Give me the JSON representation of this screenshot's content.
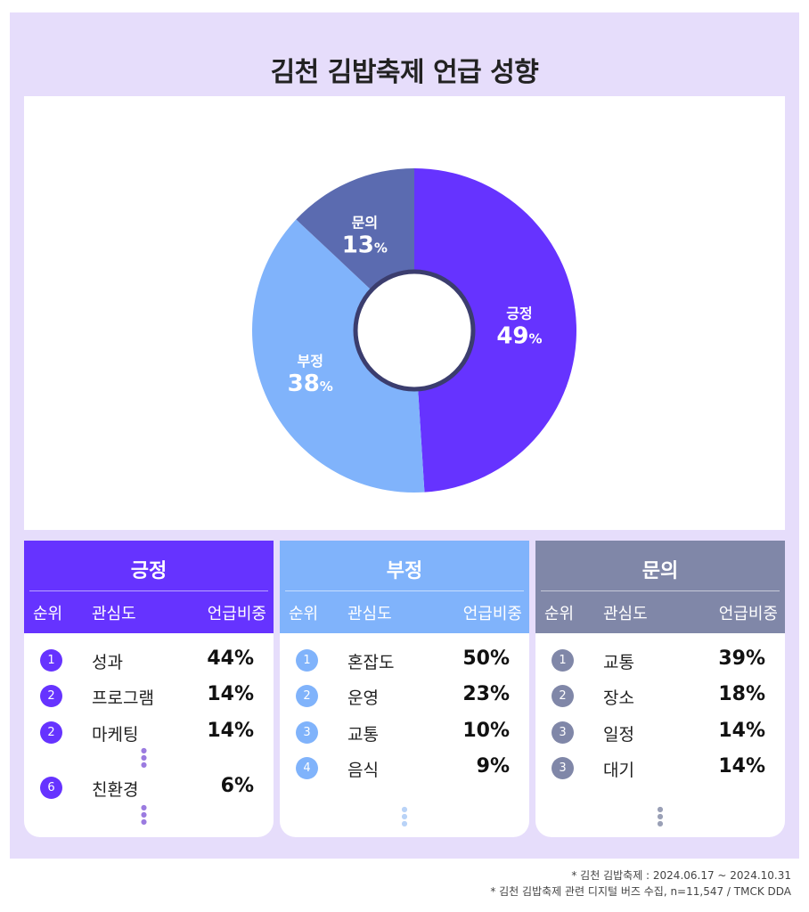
{
  "title": "김천 김밥축제 언급 성향",
  "colors": {
    "positive": "#6633ff",
    "negative": "#80b3fb",
    "inquiry": "#5b6bb0",
    "panel_inquiry": "#8087a8",
    "background": "#e6ddfb"
  },
  "chart_data": {
    "type": "pie",
    "donut": true,
    "slices": [
      {
        "label": "긍정",
        "value": 49,
        "unit": "%",
        "color": "#6633ff"
      },
      {
        "label": "부정",
        "value": 38,
        "unit": "%",
        "color": "#80b3fb"
      },
      {
        "label": "문의",
        "value": 13,
        "unit": "%",
        "color": "#5b6bb0"
      }
    ]
  },
  "table_headers": {
    "rank": "순위",
    "topic": "관심도",
    "share": "언급비중"
  },
  "panels": [
    {
      "title": "긍정",
      "rows": [
        {
          "rank": "1",
          "topic": "성과",
          "share": "44%"
        },
        {
          "rank": "2",
          "topic": "프로그램",
          "share": "14%"
        },
        {
          "rank": "2",
          "topic": "마케팅",
          "share": "14%"
        },
        {
          "rank": "6",
          "topic": "친환경",
          "share": "6%"
        }
      ]
    },
    {
      "title": "부정",
      "rows": [
        {
          "rank": "1",
          "topic": "혼잡도",
          "share": "50%"
        },
        {
          "rank": "2",
          "topic": "운영",
          "share": "23%"
        },
        {
          "rank": "3",
          "topic": "교통",
          "share": "10%"
        },
        {
          "rank": "4",
          "topic": "음식",
          "share": "9%"
        }
      ]
    },
    {
      "title": "문의",
      "rows": [
        {
          "rank": "1",
          "topic": "교통",
          "share": "39%"
        },
        {
          "rank": "2",
          "topic": "장소",
          "share": "18%"
        },
        {
          "rank": "3",
          "topic": "일정",
          "share": "14%"
        },
        {
          "rank": "3",
          "topic": "대기",
          "share": "14%"
        }
      ]
    }
  ],
  "footnotes": [
    "* 김천 김밥축제 : 2024.06.17 ~ 2024.10.31",
    "* 김천 김밥축제 관련 디지털 버즈 수집, n=11,547 / TMCK DDA"
  ]
}
